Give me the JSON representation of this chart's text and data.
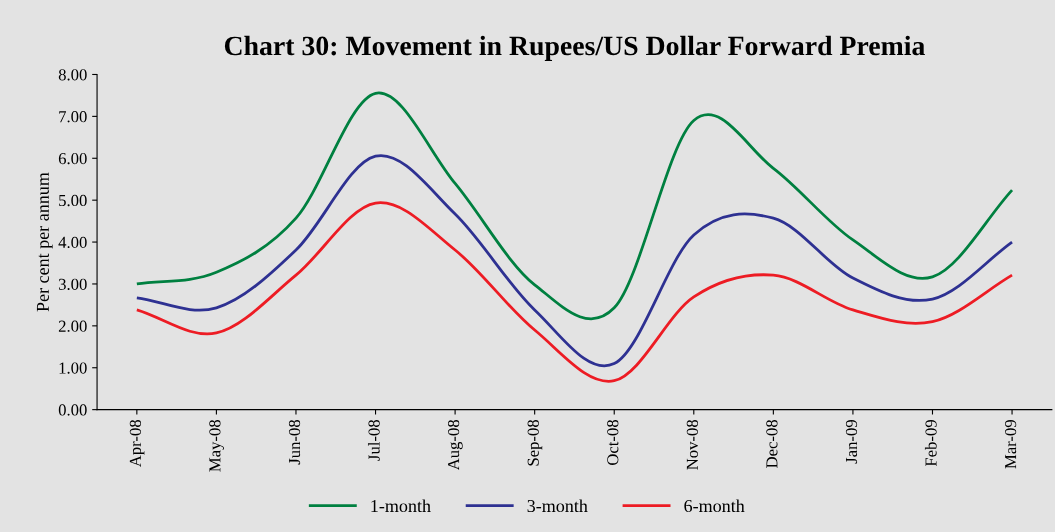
{
  "chart_data": {
    "type": "line",
    "title": "Chart 30: Movement in Rupees/US Dollar Forward Premia",
    "ylabel": "Per cent per annum",
    "categories": [
      "Apr-08",
      "May-08",
      "Jun-08",
      "Jul-08",
      "Aug-08",
      "Sep-08",
      "Oct-08",
      "Nov-08",
      "Dec-08",
      "Jan-09",
      "Feb-09",
      "Mar-09"
    ],
    "series": [
      {
        "name": "1-month",
        "color": "#008040",
        "values": [
          3.0,
          3.28,
          4.57,
          7.55,
          5.4,
          2.98,
          2.43,
          6.9,
          5.76,
          4.05,
          3.17,
          5.24
        ]
      },
      {
        "name": "3-month",
        "color": "#2e3192",
        "values": [
          2.67,
          2.43,
          3.81,
          6.05,
          4.67,
          2.38,
          1.1,
          4.17,
          4.57,
          3.14,
          2.64,
          4.0
        ]
      },
      {
        "name": "6-month",
        "color": "#ed1c24",
        "values": [
          2.38,
          1.83,
          3.21,
          4.93,
          3.81,
          1.9,
          0.69,
          2.69,
          3.21,
          2.38,
          2.1,
          3.21
        ]
      }
    ],
    "ylim": [
      0,
      8
    ],
    "yticks": [
      {
        "value": 0,
        "label": "0.00"
      },
      {
        "value": 1,
        "label": "1.00"
      },
      {
        "value": 2,
        "label": "2.00"
      },
      {
        "value": 3,
        "label": "3.00"
      },
      {
        "value": 4,
        "label": "4.00"
      },
      {
        "value": 5,
        "label": "5.00"
      },
      {
        "value": 6,
        "label": "6.00"
      },
      {
        "value": 7,
        "label": "7.00"
      },
      {
        "value": 8,
        "label": "8.00"
      }
    ],
    "grid": false,
    "legend": "bottom",
    "marker": "none",
    "line_style": "solid"
  }
}
